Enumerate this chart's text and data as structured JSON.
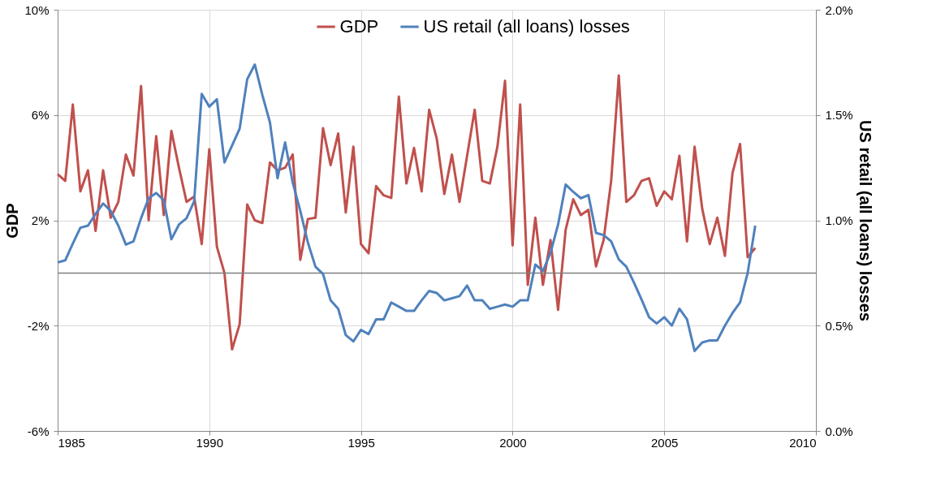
{
  "chart_data": {
    "type": "line",
    "ylabel": "GDP",
    "y2label": "US retail (all loans) losses",
    "x": [
      1985,
      1985.25,
      1985.5,
      1985.75,
      1986,
      1986.25,
      1986.5,
      1986.75,
      1987,
      1987.25,
      1987.5,
      1987.75,
      1988,
      1988.25,
      1988.5,
      1988.75,
      1989,
      1989.25,
      1989.5,
      1989.75,
      1990,
      1990.25,
      1990.5,
      1990.75,
      1991,
      1991.25,
      1991.5,
      1991.75,
      1992,
      1992.25,
      1992.5,
      1992.75,
      1993,
      1993.25,
      1993.5,
      1993.75,
      1994,
      1994.25,
      1994.5,
      1994.75,
      1995,
      1995.25,
      1995.5,
      1995.75,
      1996,
      1996.25,
      1996.5,
      1996.75,
      1997,
      1997.25,
      1997.5,
      1997.75,
      1998,
      1998.25,
      1998.5,
      1998.75,
      1999,
      1999.25,
      1999.5,
      1999.75,
      2000,
      2000.25,
      2000.5,
      2000.75,
      2001,
      2001.25,
      2001.5,
      2001.75,
      2002,
      2002.25,
      2002.5,
      2002.75,
      2003,
      2003.25,
      2003.5,
      2003.75,
      2004,
      2004.25,
      2004.5,
      2004.75,
      2005,
      2005.25,
      2005.5,
      2005.75,
      2006,
      2006.25,
      2006.5,
      2006.75,
      2007,
      2007.25,
      2007.5,
      2007.75,
      2008
    ],
    "series": [
      {
        "name": "GDP",
        "color": "#c0504d",
        "values": [
          3.75,
          3.5,
          6.4,
          3.1,
          3.9,
          1.6,
          3.9,
          2.1,
          2.7,
          4.5,
          3.7,
          7.1,
          2.0,
          5.2,
          2.2,
          5.4,
          4.0,
          2.7,
          2.9,
          1.1,
          4.7,
          1.0,
          0.0,
          -2.9,
          -1.95,
          2.6,
          2.0,
          1.9,
          4.2,
          3.9,
          4.0,
          4.5,
          0.5,
          2.05,
          2.1,
          5.5,
          4.1,
          5.3,
          2.3,
          4.8,
          1.1,
          0.75,
          3.3,
          2.95,
          2.85,
          6.7,
          3.4,
          4.75,
          3.1,
          6.2,
          5.1,
          3.0,
          4.5,
          2.7,
          4.45,
          6.2,
          3.5,
          3.4,
          4.8,
          7.3,
          1.05,
          6.4,
          -0.45,
          2.1,
          -0.45,
          1.25,
          -1.4,
          1.65,
          2.8,
          2.2,
          2.4,
          0.25,
          1.25,
          3.5,
          7.5,
          2.7,
          2.95,
          3.5,
          3.6,
          2.55,
          3.1,
          2.8,
          4.45,
          1.2,
          4.8,
          2.45,
          1.1,
          2.1,
          0.65,
          3.8,
          4.9,
          0.6,
          0.95
        ]
      },
      {
        "name": "US retail (all loans) losses",
        "color": "#4f81bd",
        "axis": "y2",
        "values": [
          0.8,
          0.81,
          0.89,
          0.965,
          0.975,
          1.03,
          1.08,
          1.045,
          0.975,
          0.885,
          0.9,
          1.01,
          1.105,
          1.13,
          1.095,
          0.91,
          0.98,
          1.01,
          1.09,
          1.6,
          1.54,
          1.575,
          1.275,
          1.355,
          1.435,
          1.67,
          1.74,
          1.595,
          1.465,
          1.2,
          1.37,
          1.18,
          1.045,
          0.895,
          0.78,
          0.745,
          0.62,
          0.58,
          0.455,
          0.425,
          0.48,
          0.46,
          0.53,
          0.53,
          0.61,
          0.59,
          0.57,
          0.57,
          0.62,
          0.665,
          0.655,
          0.62,
          0.63,
          0.64,
          0.69,
          0.62,
          0.62,
          0.58,
          0.59,
          0.6,
          0.59,
          0.62,
          0.62,
          0.79,
          0.76,
          0.845,
          0.98,
          1.17,
          1.135,
          1.105,
          1.12,
          0.94,
          0.93,
          0.9,
          0.815,
          0.78,
          0.705,
          0.625,
          0.54,
          0.51,
          0.54,
          0.5,
          0.58,
          0.53,
          0.38,
          0.42,
          0.43,
          0.43,
          0.5,
          0.56,
          0.61,
          0.75,
          0.975
        ]
      }
    ],
    "xlim": [
      1985,
      2010
    ],
    "xticks": [
      1985,
      1990,
      1995,
      2000,
      2005,
      2010
    ],
    "ylim": [
      -6,
      10
    ],
    "yticks": [
      {
        "value": -6,
        "label": "-6%"
      },
      {
        "value": -2,
        "label": "-2%"
      },
      {
        "value": 2,
        "label": "2%"
      },
      {
        "value": 6,
        "label": "6%"
      },
      {
        "value": 10,
        "label": "10%"
      }
    ],
    "y2lim": [
      0,
      2
    ],
    "y2ticks": [
      {
        "value": 0,
        "label": "0.0%"
      },
      {
        "value": 0.5,
        "label": "0.5%"
      },
      {
        "value": 1,
        "label": "1.0%"
      },
      {
        "value": 1.5,
        "label": "1.5%"
      },
      {
        "value": 2,
        "label": "2.0%"
      }
    ],
    "ref_lines": [
      {
        "axis": "y",
        "value": 0,
        "color": "#7f7f7f"
      }
    ],
    "grid": true,
    "legend": "top"
  }
}
